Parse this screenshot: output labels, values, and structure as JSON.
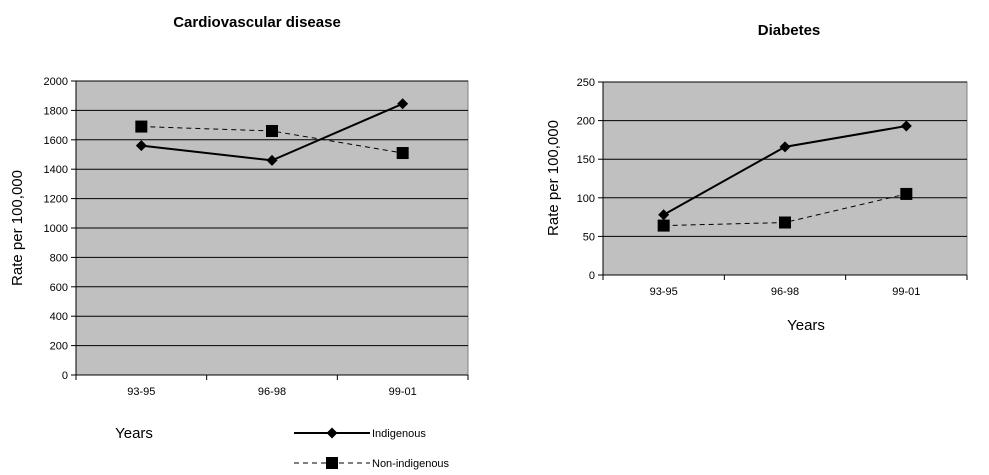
{
  "colors": {
    "plot_bg": "#c0c0c0",
    "grid": "#000000",
    "axis": "#000000",
    "series": "#000000"
  },
  "legend": {
    "entries": [
      "Indigenous",
      "Non-indigenous"
    ],
    "placement": "bottom-right of first chart"
  },
  "chart_data": [
    {
      "type": "line",
      "title": "Cardiovascular disease",
      "xlabel": "Years",
      "ylabel": "Rate per 100,000",
      "categories": [
        "93-95",
        "96-98",
        "99-01"
      ],
      "ylim": [
        0,
        2000
      ],
      "yticks": [
        "0",
        "200",
        "400",
        "600",
        "800",
        "1000",
        "1200",
        "1400",
        "1600",
        "1800",
        "2000"
      ],
      "grid": true,
      "series": [
        {
          "name": "Indigenous",
          "values": [
            1560,
            1460,
            1845
          ],
          "marker": "diamond",
          "line": "solid"
        },
        {
          "name": "Non-indigenous",
          "values": [
            1690,
            1660,
            1510
          ],
          "marker": "square",
          "line": "dashed"
        }
      ]
    },
    {
      "type": "line",
      "title": "Diabetes",
      "xlabel": "Years",
      "ylabel": "Rate per 100,000",
      "categories": [
        "93-95",
        "96-98",
        "99-01"
      ],
      "ylim": [
        0,
        250
      ],
      "yticks": [
        "0",
        "50",
        "100",
        "150",
        "200",
        "250"
      ],
      "grid": true,
      "series": [
        {
          "name": "Indigenous",
          "values": [
            78,
            166,
            193
          ],
          "marker": "diamond",
          "line": "solid"
        },
        {
          "name": "Non-indigenous",
          "values": [
            64,
            68,
            105
          ],
          "marker": "square",
          "line": "dashed"
        }
      ]
    }
  ]
}
